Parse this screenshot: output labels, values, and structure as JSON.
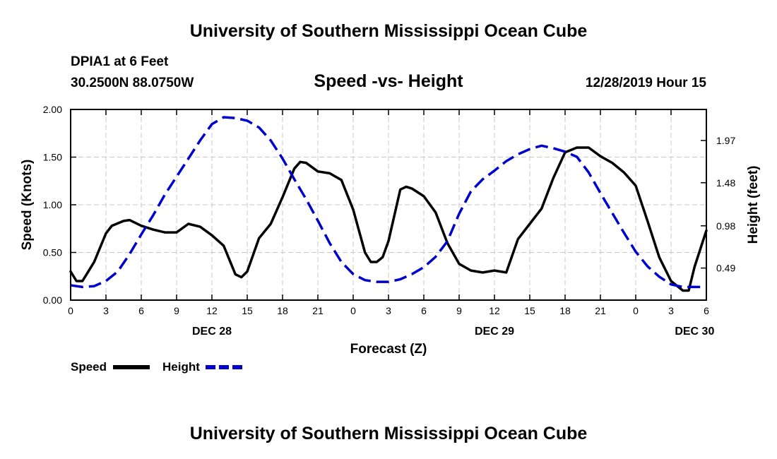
{
  "header": {
    "title": "University of Southern Mississippi Ocean Cube",
    "station": "DPIA1 at 6 Feet",
    "coords": "30.2500N 88.0750W",
    "datetime": "12/28/2019 Hour 15"
  },
  "footer": {
    "title": "University of Southern Mississippi Ocean Cube"
  },
  "colors": {
    "speed": "#000000",
    "height": "#0000cc",
    "grid": "#c8c8c8"
  },
  "chart_data": {
    "type": "line",
    "title": "Speed -vs- Height",
    "xlabel": "Forecast (Z)",
    "ylabel": "Speed (Knots)",
    "y2label": "Height (feet)",
    "grid": true,
    "legend_position": "bottom-left",
    "xlim": [
      0,
      54
    ],
    "ylim": [
      0,
      2
    ],
    "y2lim": [
      0.118,
      2.33
    ],
    "x_ticks": [
      0,
      3,
      6,
      9,
      12,
      15,
      18,
      21,
      24,
      27,
      30,
      33,
      36,
      39,
      42,
      45,
      48,
      51,
      54
    ],
    "x_tick_labels": [
      "0",
      "3",
      "6",
      "9",
      "12",
      "15",
      "18",
      "21",
      "0",
      "3",
      "6",
      "9",
      "12",
      "15",
      "18",
      "21",
      "0",
      "3",
      "6"
    ],
    "y_ticks": [
      0,
      0.5,
      1,
      1.5,
      2
    ],
    "y_tick_labels": [
      "0.00",
      "0.50",
      "1.00",
      "1.50",
      "2.00"
    ],
    "y2_ticks": [
      0.49,
      0.98,
      1.48,
      1.97
    ],
    "y2_tick_labels": [
      "0.49",
      "0.98",
      "1.48",
      "1.97"
    ],
    "date_labels": [
      {
        "x": 12,
        "label": "DEC 28"
      },
      {
        "x": 36,
        "label": "DEC 29"
      },
      {
        "x": 53,
        "label": "DEC 30"
      }
    ],
    "series": [
      {
        "name": "Speed",
        "axis": "left",
        "style": "solid",
        "x": [
          0,
          0.5,
          1,
          2,
          3,
          3.5,
          4.5,
          5,
          6,
          7,
          8,
          9,
          10,
          11,
          12,
          13,
          14,
          14.5,
          15,
          16,
          17,
          18,
          19,
          19.5,
          20,
          21,
          22,
          23,
          24,
          25,
          25.5,
          26,
          26.5,
          27,
          28,
          28.5,
          29,
          30,
          31,
          32,
          33,
          34,
          35,
          36,
          37,
          38,
          39,
          40,
          41,
          42,
          43,
          44,
          45,
          46,
          47,
          48,
          49,
          50,
          51,
          52,
          52.5,
          53,
          54
        ],
        "values": [
          0.3,
          0.2,
          0.2,
          0.4,
          0.7,
          0.78,
          0.83,
          0.84,
          0.78,
          0.74,
          0.71,
          0.71,
          0.8,
          0.77,
          0.68,
          0.57,
          0.27,
          0.24,
          0.3,
          0.65,
          0.8,
          1.08,
          1.38,
          1.45,
          1.44,
          1.35,
          1.33,
          1.26,
          0.95,
          0.5,
          0.4,
          0.4,
          0.45,
          0.62,
          1.16,
          1.19,
          1.17,
          1.09,
          0.92,
          0.6,
          0.38,
          0.31,
          0.29,
          0.31,
          0.29,
          0.64,
          0.8,
          0.96,
          1.28,
          1.55,
          1.6,
          1.6,
          1.51,
          1.44,
          1.34,
          1.2,
          0.83,
          0.45,
          0.2,
          0.1,
          0.1,
          0.35,
          0.73
        ]
      },
      {
        "name": "Height",
        "axis": "right",
        "style": "dashed",
        "x": [
          0,
          0.5,
          1,
          2,
          3,
          4,
          5,
          6,
          7,
          8,
          9,
          10,
          11,
          12,
          13,
          14,
          15,
          16,
          17,
          18,
          19,
          20,
          21,
          22,
          23,
          24,
          25,
          26,
          27,
          28,
          29,
          30,
          31,
          32,
          33,
          34,
          35,
          36,
          37,
          38,
          39,
          40,
          41,
          42,
          43,
          44,
          45,
          46,
          47,
          48,
          49,
          50,
          51,
          52,
          53,
          54
        ],
        "values": [
          0.29,
          0.28,
          0.27,
          0.28,
          0.34,
          0.45,
          0.65,
          0.88,
          1.1,
          1.34,
          1.55,
          1.76,
          1.97,
          2.16,
          2.24,
          2.23,
          2.2,
          2.12,
          1.97,
          1.76,
          1.52,
          1.29,
          1.04,
          0.78,
          0.56,
          0.42,
          0.35,
          0.33,
          0.33,
          0.36,
          0.42,
          0.5,
          0.62,
          0.8,
          1.12,
          1.38,
          1.52,
          1.62,
          1.73,
          1.81,
          1.87,
          1.91,
          1.88,
          1.84,
          1.78,
          1.6,
          1.36,
          1.13,
          0.9,
          0.68,
          0.51,
          0.39,
          0.3,
          0.27,
          0.27,
          0.27
        ]
      }
    ]
  }
}
